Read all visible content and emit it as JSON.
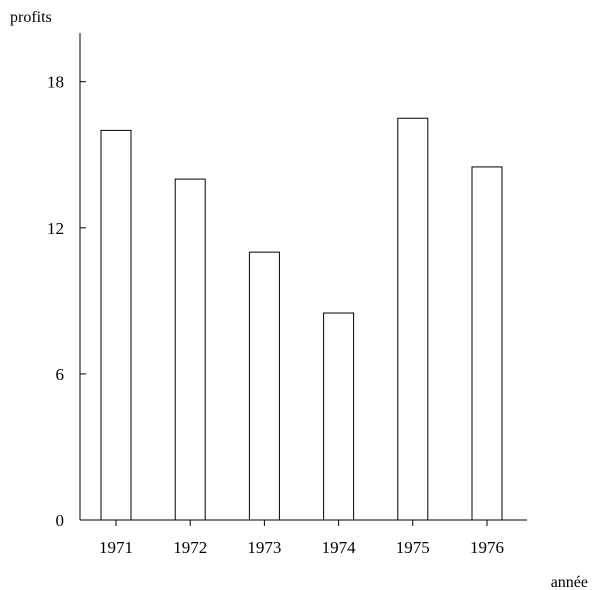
{
  "chart_data": {
    "type": "bar",
    "title": "",
    "xlabel": "année",
    "ylabel": "profits",
    "categories": [
      "1971",
      "1972",
      "1973",
      "1974",
      "1975",
      "1976"
    ],
    "values": [
      16,
      14,
      11,
      8.5,
      16.5,
      14.5
    ],
    "ylim": [
      0,
      20
    ],
    "yticks": [
      0,
      6,
      12,
      18
    ],
    "grid": false,
    "legend": "none"
  }
}
